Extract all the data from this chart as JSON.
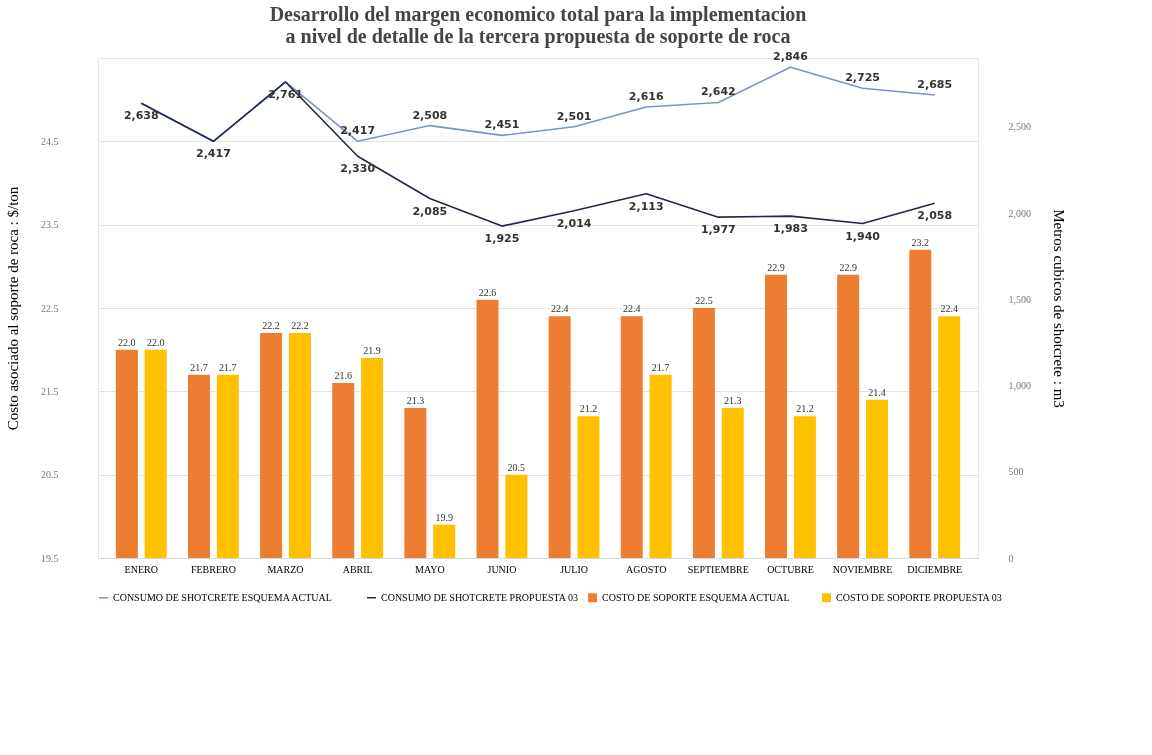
{
  "chart_data": {
    "type": "bar",
    "title": "Desarrollo del margen economico total para la implementacion\na nivel de detalle de la tercera propuesta de soporte de roca",
    "ylabel": "Costo asociado al soporte de roca  : $/ton",
    "y2label": "Metros cubicos de shotcrete  : m3",
    "categories": [
      "ENERO",
      "FEBRERO",
      "MARZO",
      "ABRIL",
      "MAYO",
      "JUNIO",
      "JULIO",
      "AGOSTO",
      "SEPTIEMBRE",
      "OCTUBRE",
      "NOVIEMBRE",
      "DICIEMBRE"
    ],
    "series": [
      {
        "name": "COSTO DE SOPORTE ESQUEMA ACTUAL",
        "color": "#ed7d31",
        "values": [
          22.0,
          21.7,
          22.2,
          21.6,
          21.3,
          22.6,
          22.4,
          22.4,
          22.5,
          22.9,
          22.9,
          23.2
        ],
        "value_labels": [
          "22.0",
          "21.7",
          "22.2",
          "21.6",
          "21.3",
          "22.6",
          "22.4",
          "22.4",
          "22.5",
          "22.9",
          "22.9",
          "23.2"
        ]
      },
      {
        "name": "COSTO DE SOPORTE PROPUESTA 03",
        "color": "#ffc000",
        "values": [
          22.0,
          21.7,
          22.2,
          21.9,
          19.9,
          20.5,
          21.2,
          21.7,
          21.3,
          21.2,
          21.4,
          22.4
        ],
        "value_labels": [
          "22.0",
          "21.7",
          "22.2",
          "21.9",
          "19.9",
          "20.5",
          "21.2",
          "21.7",
          "21.3",
          "21.2",
          "21.4",
          "22.4"
        ]
      },
      {
        "name": "CONSUMO DE SHOTCRETE ESQUEMA ACTUAL",
        "type": "line",
        "axis": "y2",
        "color": "#7b96c2",
        "values": [
          2638,
          2417,
          2761,
          2417,
          2508,
          2451,
          2501,
          2616,
          2642,
          2846,
          2725,
          2685
        ],
        "value_labels": [
          null,
          null,
          null,
          "2,417",
          "2,508",
          "2,451",
          "2,501",
          "2,616",
          "2,642",
          "2,846",
          "2,725",
          "2,685"
        ]
      },
      {
        "name": "CONSUMO DE SHOTCRETE PROPUESTA 03",
        "type": "line",
        "axis": "y2",
        "color": "#1f2a4a",
        "values": [
          2638,
          2417,
          2761,
          2330,
          2085,
          1925,
          2014,
          2113,
          1977,
          1983,
          1940,
          2058
        ],
        "value_labels": [
          "2,638",
          "2,417",
          "2,761",
          "2,330",
          "2,085",
          "1,925",
          "2,014",
          "2,113",
          "1,977",
          "1,983",
          "1,940",
          "2,058"
        ]
      }
    ],
    "ylim": [
      19.5,
      25.5
    ],
    "yticks": [
      19.5,
      20.5,
      21.5,
      22.5,
      23.5,
      24.5
    ],
    "y2lim": [
      0,
      2900
    ],
    "y2ticks": [
      {
        "value": 0,
        "label": "0"
      },
      {
        "value": 500,
        "label": "500"
      },
      {
        "value": 1000,
        "label": "1,000"
      },
      {
        "value": 1500,
        "label": "1,500"
      },
      {
        "value": 2000,
        "label": "2,000"
      },
      {
        "value": 2500,
        "label": "2,500"
      }
    ],
    "grid": "y",
    "legend": "bottom"
  }
}
